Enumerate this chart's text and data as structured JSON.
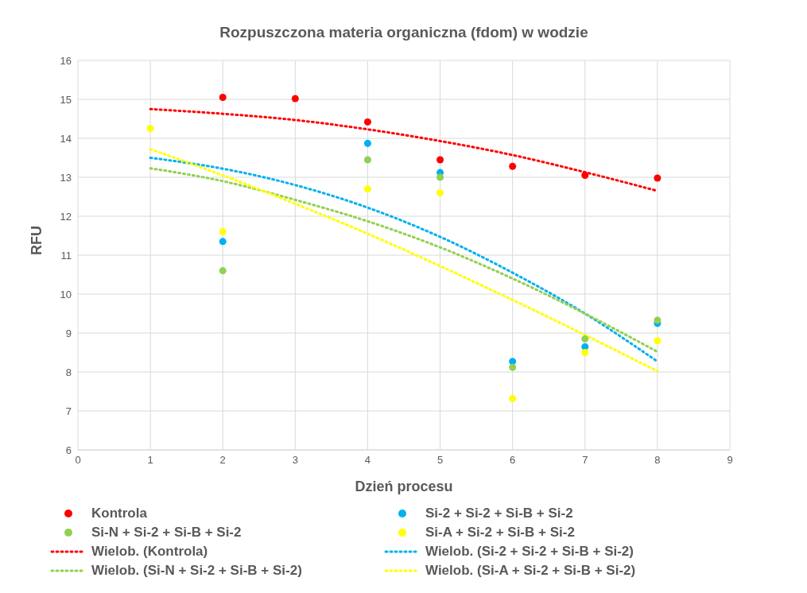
{
  "chart_data": {
    "type": "scatter",
    "title": "Rozpuszczona materia organiczna (fdom) w wodzie",
    "xlabel": "Dzień procesu",
    "ylabel": "RFU",
    "x": [
      1,
      2,
      3,
      4,
      5,
      6,
      7,
      8
    ],
    "xlim": [
      0,
      9
    ],
    "xticks": [
      0,
      1,
      2,
      3,
      4,
      5,
      6,
      7,
      8,
      9
    ],
    "ylim": [
      6,
      16
    ],
    "yticks": [
      6,
      7,
      8,
      9,
      10,
      11,
      12,
      13,
      14,
      15,
      16
    ],
    "grid": true,
    "legend": "bottom",
    "marker": "circle",
    "series": [
      {
        "name": "Kontrola",
        "color": "#ff0000",
        "values": [
          null,
          15.05,
          15.02,
          14.42,
          13.45,
          13.28,
          13.05,
          12.98
        ]
      },
      {
        "name": "Si-2 + Si-2 + Si-B + Si-2",
        "color": "#00b0f0",
        "values": [
          null,
          11.35,
          null,
          13.87,
          13.12,
          8.27,
          8.65,
          9.25
        ]
      },
      {
        "name": "Si-N + Si-2 + Si-B + Si-2",
        "color": "#92d050",
        "values": [
          null,
          10.6,
          null,
          13.45,
          13.0,
          8.12,
          8.85,
          9.33
        ]
      },
      {
        "name": "Si-A + Si-2 + Si-B + Si-2",
        "color": "#ffff00",
        "values": [
          14.25,
          11.6,
          null,
          12.7,
          12.6,
          7.32,
          8.5,
          8.8
        ]
      },
      {
        "name": "Wielob. (Kontrola)",
        "type": "line",
        "line_style": "dotted",
        "marker": "none",
        "color": "#ff0000",
        "x": [
          1,
          2,
          3,
          4,
          5,
          6,
          7,
          8
        ],
        "values": [
          14.75,
          14.63,
          14.47,
          14.23,
          13.93,
          13.57,
          13.13,
          12.65
        ]
      },
      {
        "name": "Wielob. (Si-2 + Si-2 + Si-B + Si-2)",
        "type": "line",
        "line_style": "dotted",
        "marker": "none",
        "color": "#00b0f0",
        "x": [
          1,
          2,
          3,
          4,
          5,
          6,
          7,
          8
        ],
        "values": [
          13.5,
          13.22,
          12.8,
          12.22,
          11.47,
          10.55,
          9.5,
          8.27
        ]
      },
      {
        "name": "Wielob. (Si-N + Si-2 + Si-B + Si-2)",
        "type": "line",
        "line_style": "dotted",
        "marker": "none",
        "color": "#92d050",
        "x": [
          1,
          2,
          3,
          4,
          5,
          6,
          7,
          8
        ],
        "values": [
          13.23,
          12.9,
          12.42,
          11.87,
          11.2,
          10.4,
          9.5,
          8.52
        ]
      },
      {
        "name": "Wielob. (Si-A + Si-2 + Si-B + Si-2)",
        "type": "line",
        "line_style": "dotted",
        "marker": "none",
        "color": "#ffff00",
        "x": [
          1,
          2,
          3,
          4,
          5,
          6,
          7,
          8
        ],
        "values": [
          13.72,
          13.05,
          12.32,
          11.55,
          10.72,
          9.85,
          8.95,
          8.02
        ]
      }
    ]
  }
}
